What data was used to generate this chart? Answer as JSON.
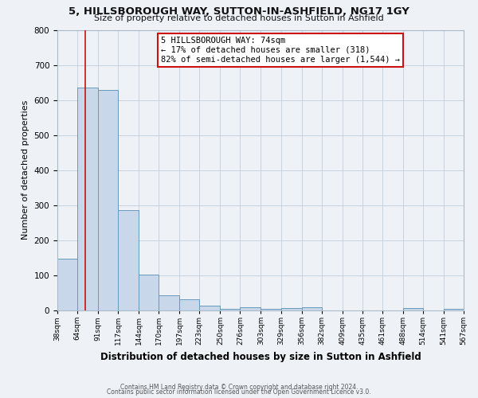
{
  "title": "5, HILLSBOROUGH WAY, SUTTON-IN-ASHFIELD, NG17 1GY",
  "subtitle": "Size of property relative to detached houses in Sutton in Ashfield",
  "xlabel": "Distribution of detached houses by size in Sutton in Ashfield",
  "ylabel": "Number of detached properties",
  "bin_edges": [
    38,
    64,
    91,
    117,
    144,
    170,
    197,
    223,
    250,
    276,
    303,
    329,
    356,
    382,
    409,
    435,
    461,
    488,
    514,
    541,
    567
  ],
  "bar_heights": [
    148,
    635,
    628,
    287,
    101,
    44,
    32,
    14,
    5,
    10,
    5,
    6,
    10,
    0,
    0,
    0,
    0,
    7,
    0,
    5
  ],
  "bar_color": "#c8d8ea",
  "bar_edge_color": "#6699bb",
  "red_line_x": 74,
  "annotation_line1": "5 HILLSBOROUGH WAY: 74sqm",
  "annotation_line2": "← 17% of detached houses are smaller (318)",
  "annotation_line3": "82% of semi-detached houses are larger (1,544) →",
  "annotation_box_facecolor": "#ffffff",
  "annotation_box_edgecolor": "#cc1111",
  "red_line_color": "#cc1111",
  "ylim": [
    0,
    800
  ],
  "yticks": [
    0,
    100,
    200,
    300,
    400,
    500,
    600,
    700,
    800
  ],
  "tick_labels": [
    "38sqm",
    "64sqm",
    "91sqm",
    "117sqm",
    "144sqm",
    "170sqm",
    "197sqm",
    "223sqm",
    "250sqm",
    "276sqm",
    "303sqm",
    "329sqm",
    "356sqm",
    "382sqm",
    "409sqm",
    "435sqm",
    "461sqm",
    "488sqm",
    "514sqm",
    "541sqm",
    "567sqm"
  ],
  "footer1": "Contains HM Land Registry data © Crown copyright and database right 2024.",
  "footer2": "Contains public sector information licensed under the Open Government Licence v3.0.",
  "background_color": "#eef2f7",
  "plot_bg_color": "#eef2f7",
  "grid_color": "#c5d3e0"
}
